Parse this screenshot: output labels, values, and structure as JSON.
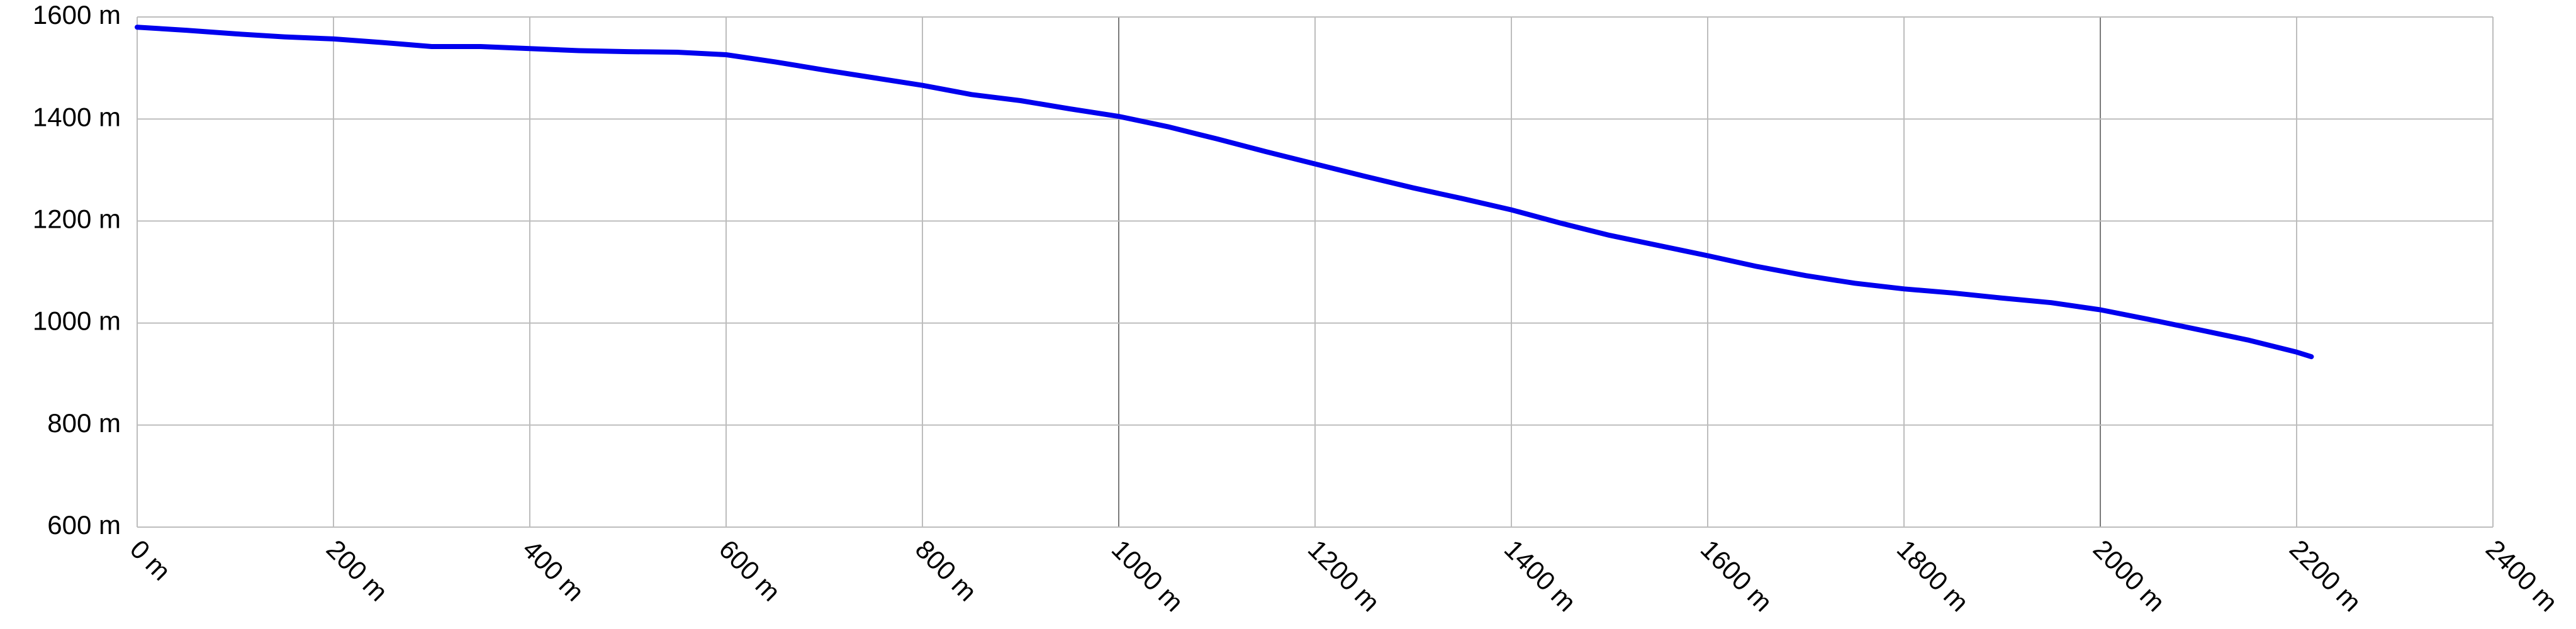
{
  "chart_data": {
    "type": "line",
    "title": "",
    "xlabel": "",
    "ylabel": "",
    "xlim": [
      0,
      2400
    ],
    "ylim": [
      600,
      1600
    ],
    "grid": true,
    "legend": "none",
    "x_ticks": [
      {
        "value": 0,
        "label": "0 m"
      },
      {
        "value": 200,
        "label": "200 m"
      },
      {
        "value": 400,
        "label": "400 m"
      },
      {
        "value": 600,
        "label": "600 m"
      },
      {
        "value": 800,
        "label": "800 m"
      },
      {
        "value": 1000,
        "label": "1000 m"
      },
      {
        "value": 1200,
        "label": "1200 m"
      },
      {
        "value": 1400,
        "label": "1400 m"
      },
      {
        "value": 1600,
        "label": "1600 m"
      },
      {
        "value": 1800,
        "label": "1800 m"
      },
      {
        "value": 2000,
        "label": "2000 m"
      },
      {
        "value": 2200,
        "label": "2200 m"
      },
      {
        "value": 2400,
        "label": "2400 m"
      }
    ],
    "y_ticks": [
      {
        "value": 600,
        "label": "600 m"
      },
      {
        "value": 800,
        "label": "800 m"
      },
      {
        "value": 1000,
        "label": "1000 m"
      },
      {
        "value": 1200,
        "label": "1200 m"
      },
      {
        "value": 1400,
        "label": "1400 m"
      },
      {
        "value": 1600,
        "label": "1600 m"
      }
    ],
    "series": [
      {
        "color": "#0000ee",
        "points": [
          [
            0,
            1580
          ],
          [
            50,
            1574
          ],
          [
            100,
            1567
          ],
          [
            150,
            1561
          ],
          [
            200,
            1557
          ],
          [
            250,
            1550
          ],
          [
            300,
            1542
          ],
          [
            350,
            1542
          ],
          [
            400,
            1538
          ],
          [
            450,
            1534
          ],
          [
            500,
            1532
          ],
          [
            550,
            1531
          ],
          [
            600,
            1526
          ],
          [
            650,
            1512
          ],
          [
            700,
            1496
          ],
          [
            750,
            1481
          ],
          [
            800,
            1466
          ],
          [
            850,
            1448
          ],
          [
            900,
            1436
          ],
          [
            950,
            1420
          ],
          [
            1000,
            1405
          ],
          [
            1050,
            1385
          ],
          [
            1100,
            1361
          ],
          [
            1150,
            1336
          ],
          [
            1200,
            1312
          ],
          [
            1250,
            1288
          ],
          [
            1300,
            1265
          ],
          [
            1350,
            1244
          ],
          [
            1400,
            1222
          ],
          [
            1450,
            1196
          ],
          [
            1500,
            1172
          ],
          [
            1550,
            1152
          ],
          [
            1600,
            1132
          ],
          [
            1650,
            1111
          ],
          [
            1700,
            1093
          ],
          [
            1750,
            1078
          ],
          [
            1800,
            1067
          ],
          [
            1850,
            1059
          ],
          [
            1900,
            1049
          ],
          [
            1950,
            1040
          ],
          [
            2000,
            1026
          ],
          [
            2050,
            1007
          ],
          [
            2100,
            987
          ],
          [
            2150,
            967
          ],
          [
            2200,
            943
          ],
          [
            2215,
            934
          ]
        ]
      }
    ]
  }
}
